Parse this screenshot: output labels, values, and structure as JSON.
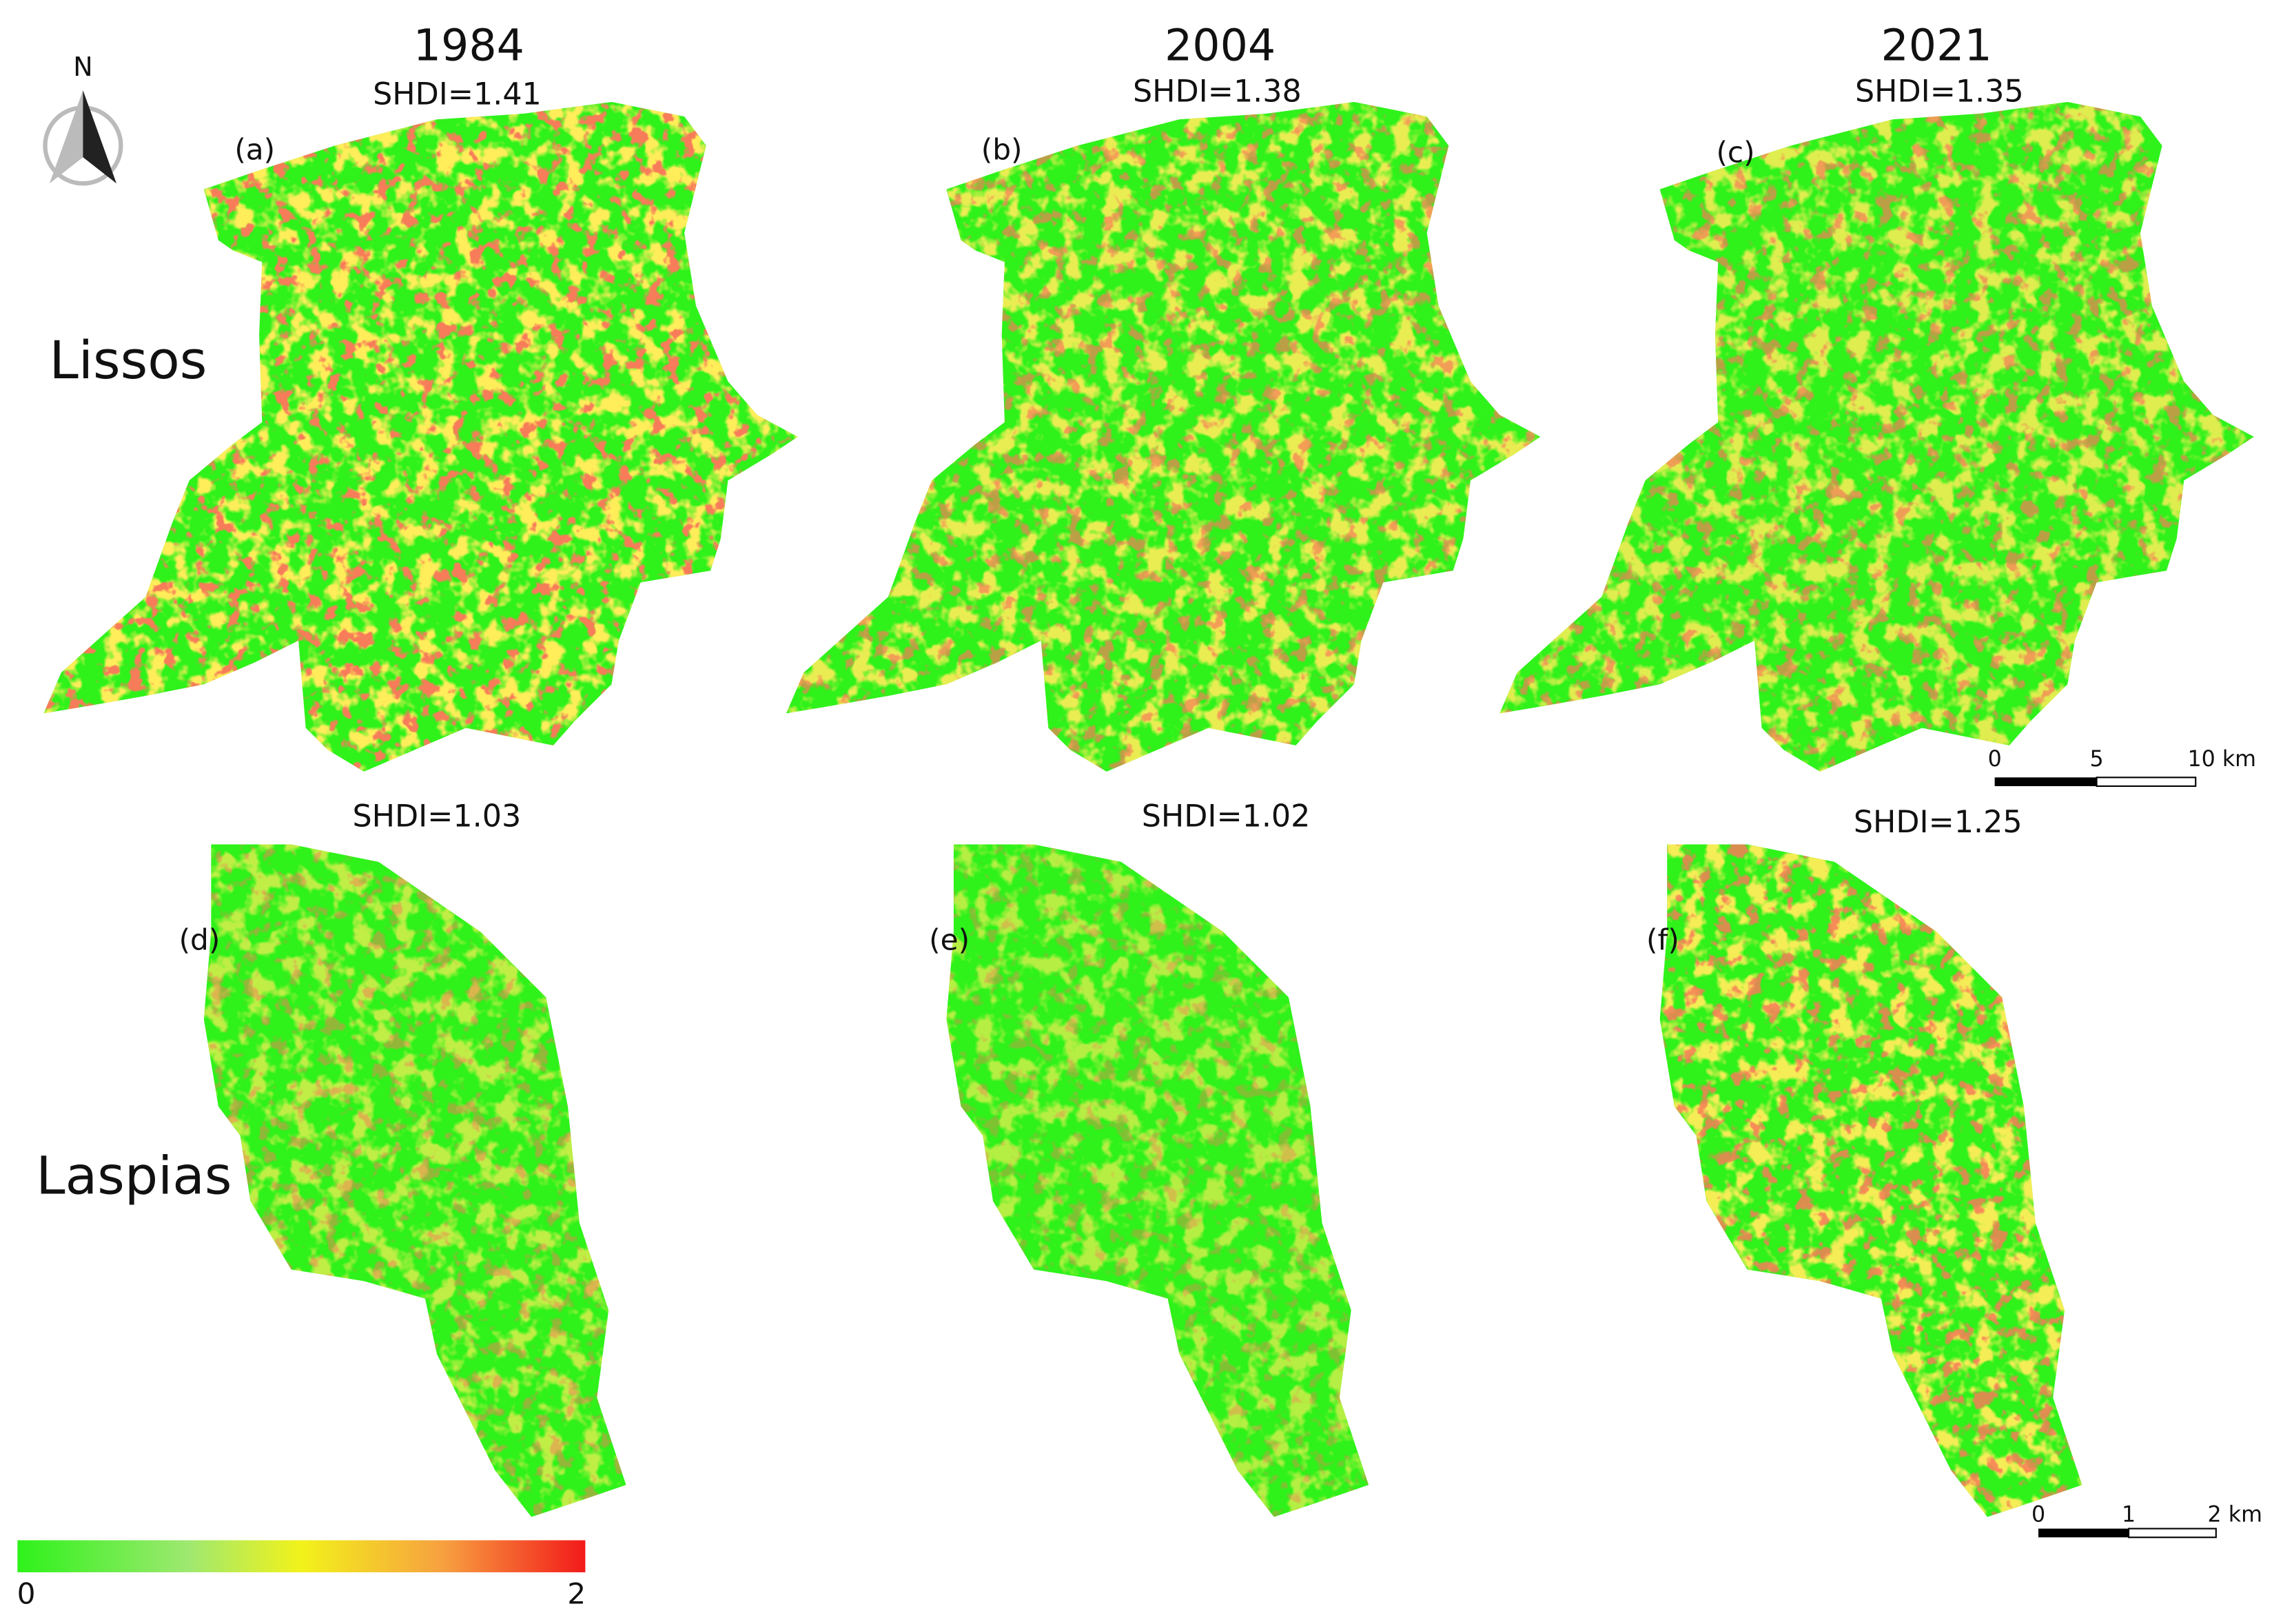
{
  "north": "N",
  "row_labels": [
    "Lissos",
    "Laspias"
  ],
  "years": [
    "1984",
    "2004",
    "2021"
  ],
  "panels": [
    [
      {
        "label": "(a)",
        "shdi": "SHDI=1.41"
      },
      {
        "label": "(b)",
        "shdi": "SHDI=1.38"
      },
      {
        "label": "(c)",
        "shdi": "SHDI=1.35"
      }
    ],
    [
      {
        "label": "(d)",
        "shdi": "SHDI=1.03"
      },
      {
        "label": "(e)",
        "shdi": "SHDI=1.02"
      },
      {
        "label": "(f)",
        "shdi": "SHDI=1.25"
      }
    ]
  ],
  "scale_bars": [
    [
      "0",
      "5",
      "10 km"
    ],
    [
      "0",
      "1",
      "2 km"
    ]
  ],
  "legend": [
    "0",
    "2"
  ]
}
